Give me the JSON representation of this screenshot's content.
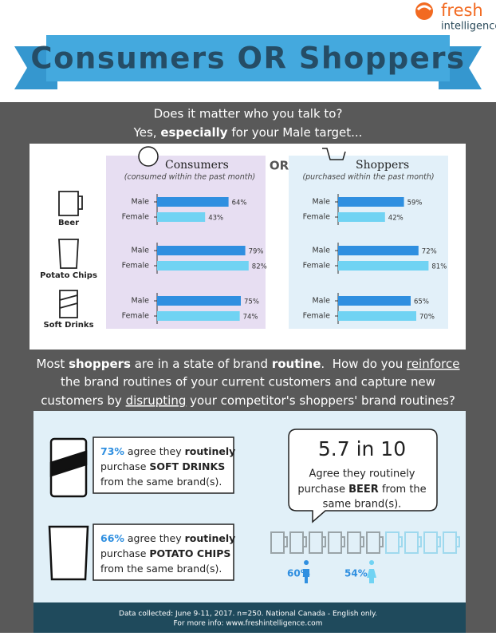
{
  "header": {
    "logo": "fresh",
    "logo_sub": "intelligence",
    "title": "Consumers OR Shoppers"
  },
  "intro": {
    "question": "Does it matter who you talk to?",
    "answer": [
      "Yes, ",
      "especially",
      " for your Male target..."
    ]
  },
  "comparison": {
    "type": "bar",
    "separator": "OR",
    "products": [
      "Beer",
      "Potato Chips",
      "Soft Drinks"
    ],
    "genders": [
      "Male",
      "Female"
    ],
    "colors": [
      "#2f8fe0",
      "#70d3f3"
    ],
    "xlim": [
      0,
      100
    ],
    "panels": [
      {
        "title": "Consumers",
        "subtitle": "(consumed within the past month)",
        "values": [
          [
            64,
            43
          ],
          [
            79,
            82
          ],
          [
            75,
            74
          ]
        ],
        "value_labels": [
          [
            "64%",
            "43%"
          ],
          [
            "79%",
            "82%"
          ],
          [
            "75%",
            "74%"
          ]
        ]
      },
      {
        "title": "Shoppers",
        "subtitle": "(purchased within the past month)",
        "values": [
          [
            59,
            42
          ],
          [
            72,
            81
          ],
          [
            65,
            70
          ]
        ],
        "value_labels": [
          [
            "59%",
            "42%"
          ],
          [
            "72%",
            "81%"
          ],
          [
            "65%",
            "70%"
          ]
        ]
      }
    ]
  },
  "message": {
    "lines": [
      [
        "Most ",
        "shoppers",
        " are in a state of brand ",
        "routine",
        ".  How do you ",
        "reinforce"
      ],
      [
        "the brand routines of your current customers and capture new"
      ],
      [
        "customers by ",
        "disrupting",
        " your competitor's shoppers' brand routines?"
      ]
    ]
  },
  "stats": [
    {
      "lines": [
        [
          "73%",
          " agree they ",
          "routinely"
        ],
        [
          "purchase ",
          "SOFT DRINKS"
        ],
        [
          "from the same brand(s)."
        ]
      ]
    },
    {
      "lines": [
        [
          "66%",
          " agree they ",
          "routinely"
        ],
        [
          "purchase ",
          "POTATO CHIPS"
        ],
        [
          "from the same brand(s)."
        ]
      ]
    }
  ],
  "beer": {
    "headline": "5.7 in 10",
    "lines": [
      [
        "Agree they routinely"
      ],
      [
        "purchase ",
        "BEER",
        " from the"
      ],
      [
        "same brand(s)."
      ]
    ],
    "male": "60%",
    "female": "54%"
  },
  "footer": [
    "Data collected: June 9-11, 2017. n=250. National Canada - English only.",
    "For more info: www.freshintelligence.com"
  ]
}
